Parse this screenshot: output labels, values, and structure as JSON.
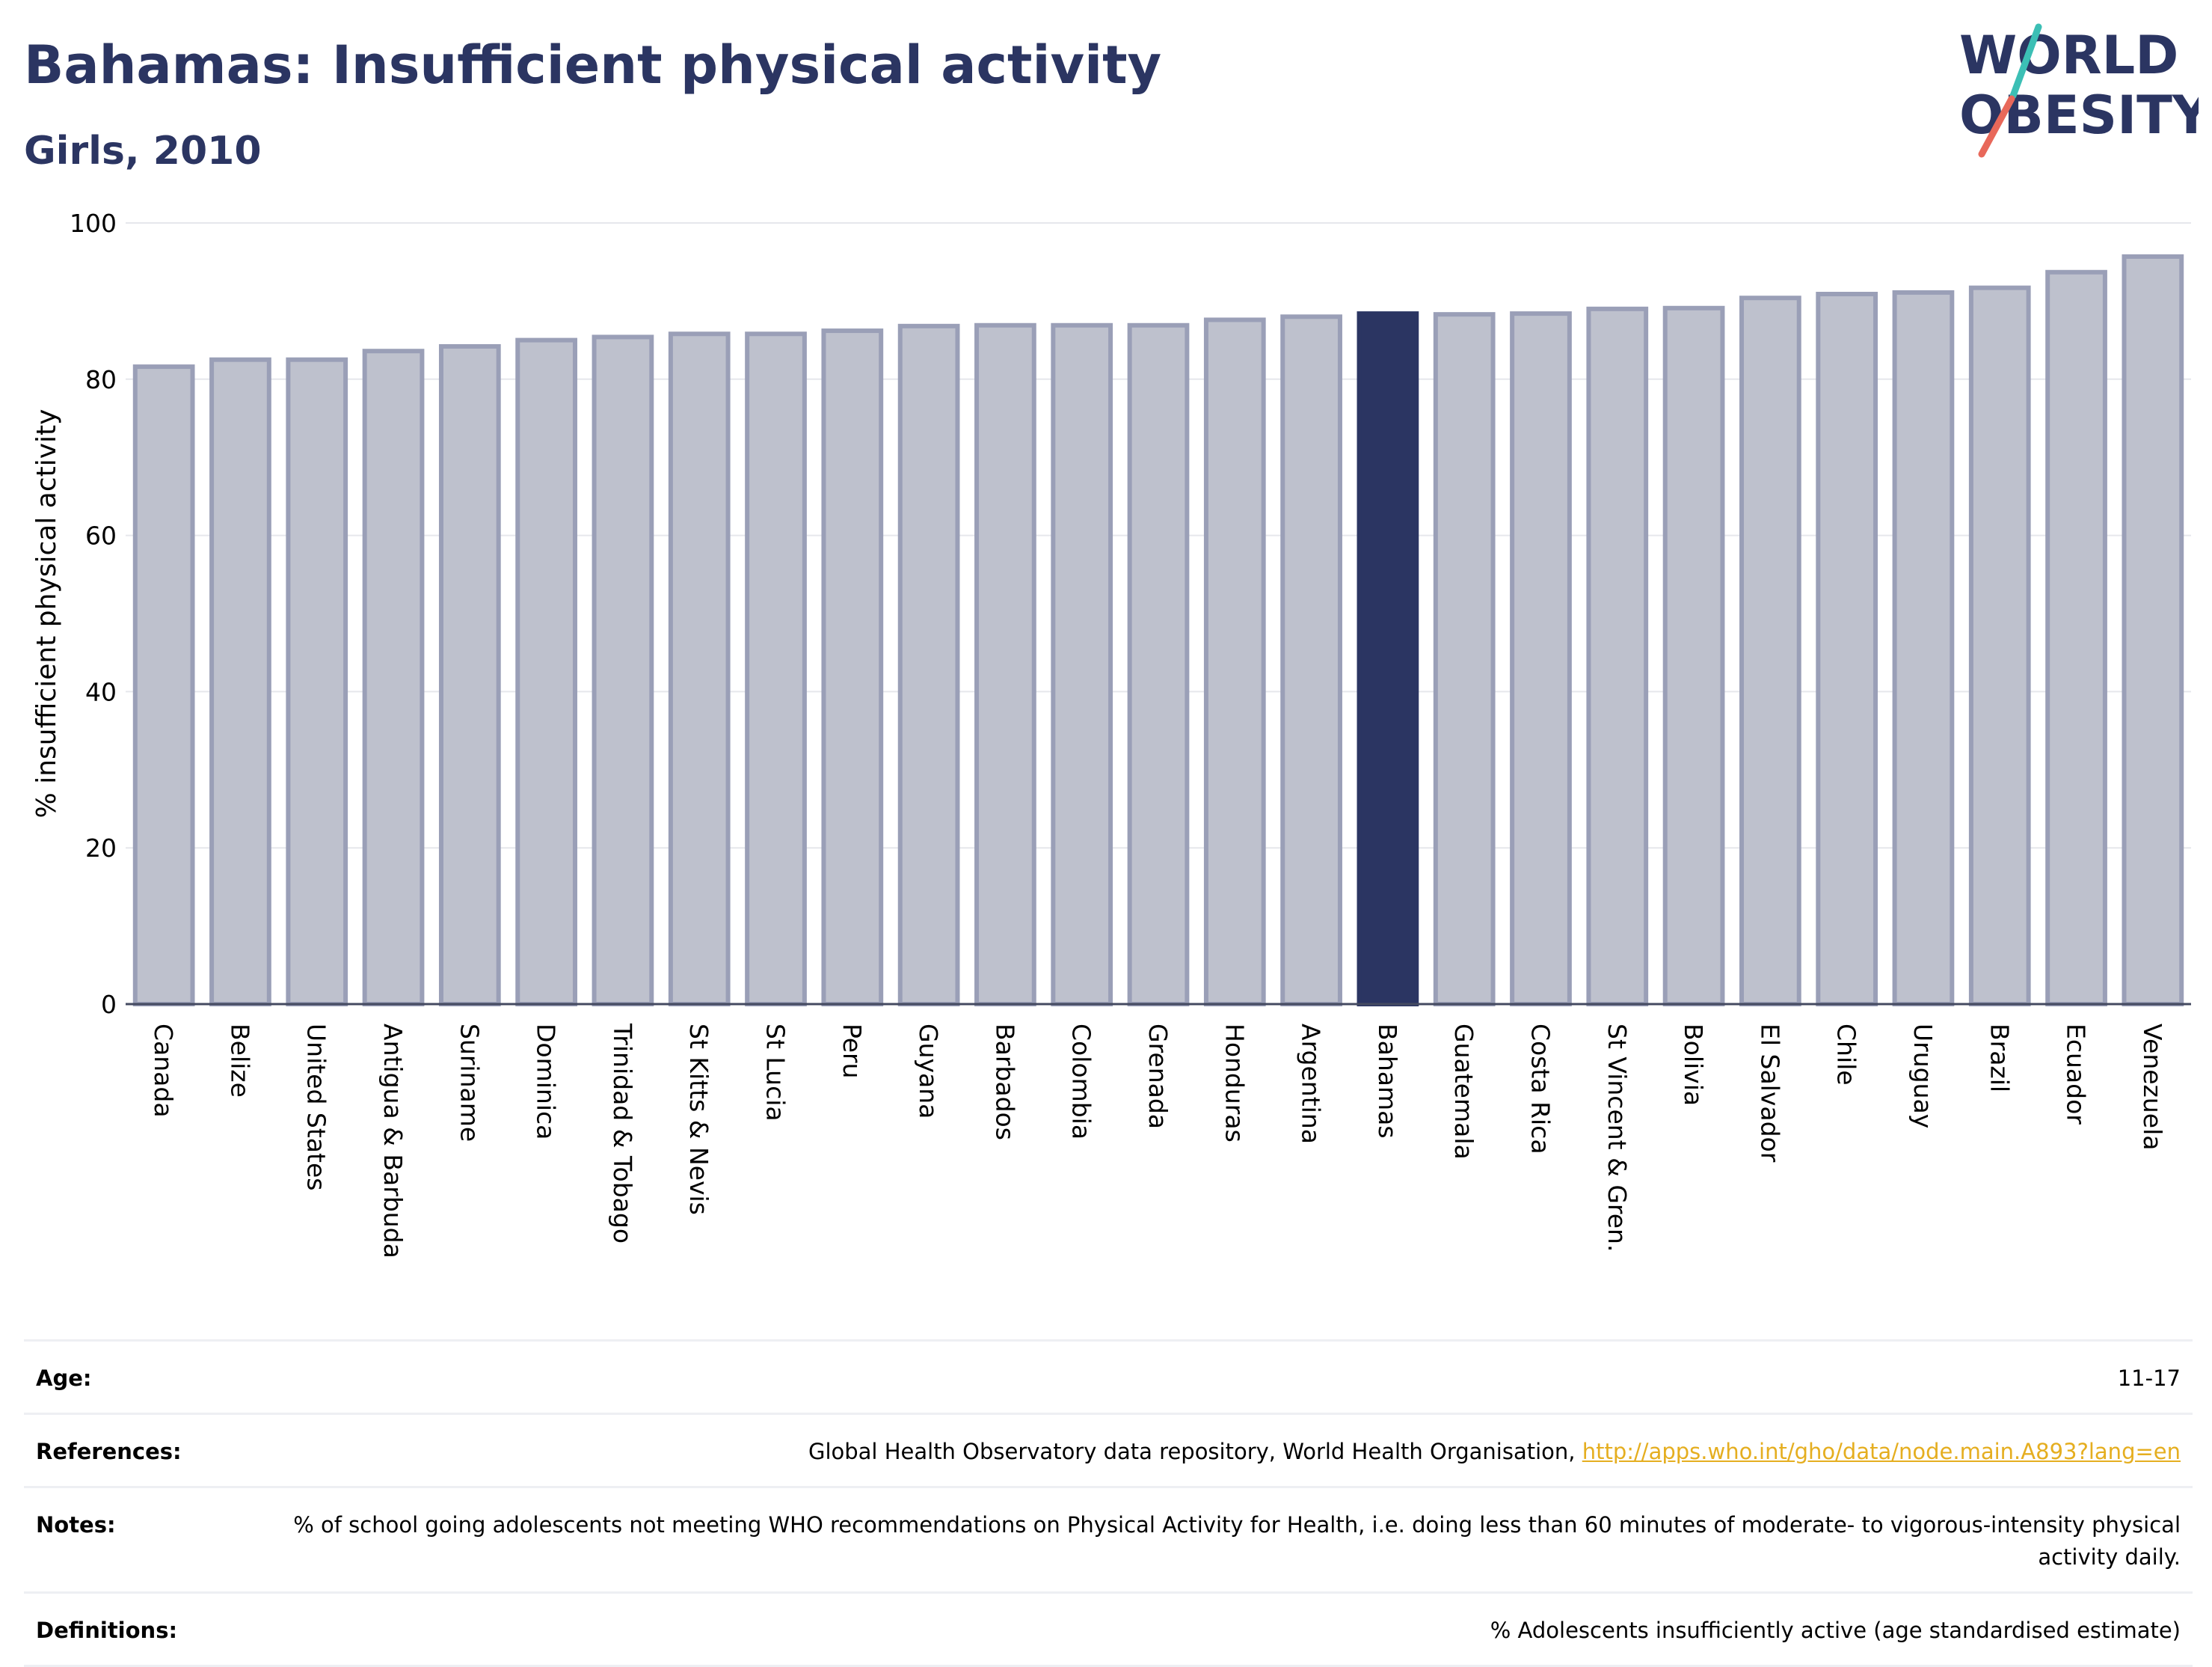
{
  "header": {
    "title": "Bahamas: Insufficient physical activity",
    "subtitle": "Girls, 2010",
    "logo_line1": "WORLD",
    "logo_line2": "OBESITY"
  },
  "colors": {
    "default_bar_fill": "#bec1cd",
    "default_bar_stroke": "#9a9fb7",
    "highlight_bar": "#2b3562",
    "title": "#2b3562",
    "gridline": "#e6e7ec",
    "link": "#e5ae20",
    "logo_teal": "#3cbfb5",
    "logo_red": "#e8685a"
  },
  "chart_data": {
    "type": "bar",
    "ylabel": "% insufficient physical activity",
    "xlabel": "",
    "ylim": [
      0,
      100
    ],
    "yticks": [
      0,
      20,
      40,
      60,
      80,
      100
    ],
    "grid": true,
    "highlight": "Bahamas",
    "categories": [
      "Canada",
      "Belize",
      "United States",
      "Antigua & Barbuda",
      "Suriname",
      "Dominica",
      "Trinidad & Tobago",
      "St Kitts & Nevis",
      "St Lucia",
      "Peru",
      "Guyana",
      "Barbados",
      "Colombia",
      "Grenada",
      "Honduras",
      "Argentina",
      "Bahamas",
      "Guatemala",
      "Costa Rica",
      "St Vincent & Gren.",
      "Bolivia",
      "El Salvador",
      "Chile",
      "Uruguay",
      "Brazil",
      "Ecuador",
      "Venezuela"
    ],
    "values": [
      81.6,
      82.5,
      82.5,
      83.6,
      84.2,
      85.0,
      85.4,
      85.8,
      85.8,
      86.2,
      86.8,
      86.9,
      86.9,
      86.9,
      87.6,
      88.0,
      88.4,
      88.3,
      88.4,
      89.0,
      89.1,
      90.4,
      90.9,
      91.1,
      91.7,
      93.7,
      95.7
    ]
  },
  "footer": {
    "rows": [
      {
        "key": "Age:",
        "value": "11-17"
      },
      {
        "key": "References:",
        "value": "Global Health Observatory data repository, World Health Organisation, ",
        "link": "http://apps.who.int/gho/data/node.main.A893?lang=en"
      },
      {
        "key": "Notes:",
        "value": "% of school going adolescents not meeting WHO recommendations on Physical Activity for Health, i.e. doing less than 60 minutes of moderate- to vigorous-intensity physical activity daily."
      },
      {
        "key": "Definitions:",
        "value": "% Adolescents insufficiently active (age standardised estimate)"
      }
    ]
  }
}
